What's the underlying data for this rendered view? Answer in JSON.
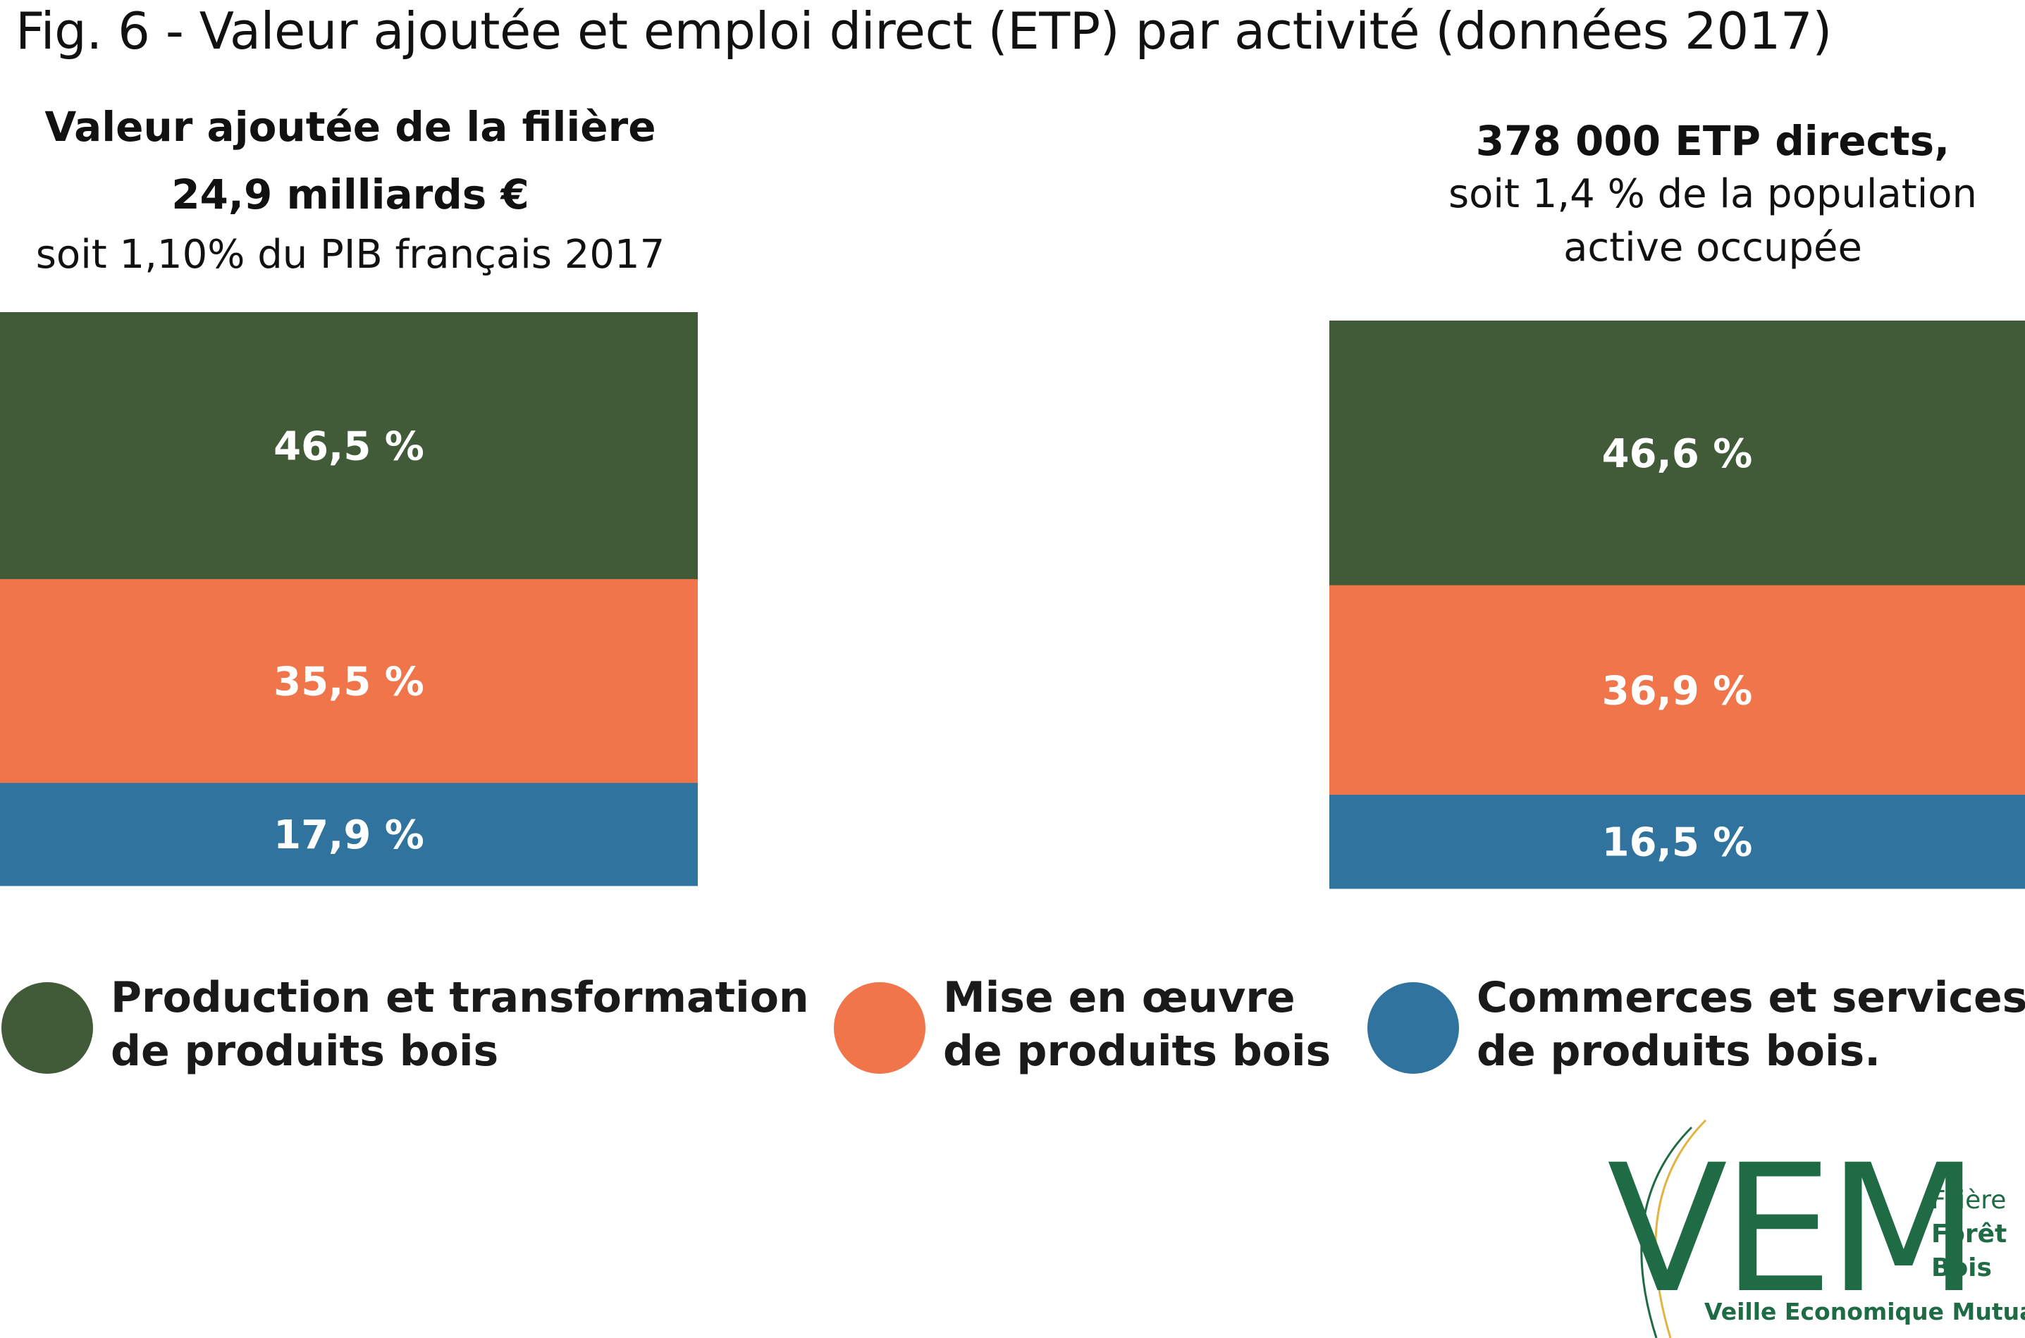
{
  "title": "Fig. 6 - Valeur ajoutée et emploi direct (ETP) par activité (données 2017)",
  "left_header": {
    "line1": "Valeur ajoutée de la filière",
    "line2": "24,9 milliards €",
    "line3": "soit 1,10% du PIB français 2017"
  },
  "right_header": {
    "line1": "378 000 ETP directs,",
    "line2": "soit 1,4 % de la population",
    "line3": "active occupée"
  },
  "colors": {
    "green": "#415a37",
    "orange": "#f0754a",
    "blue": "#2f739e"
  },
  "chart_data": {
    "type": "bar",
    "stacked": true,
    "categories": [
      "Valeur ajoutée",
      "Emploi direct (ETP)"
    ],
    "series": [
      {
        "name": "Production et transformation de produits bois",
        "color": "#415a37",
        "values": [
          46.5,
          46.6
        ],
        "labels": [
          "46,5 %",
          "46,6 %"
        ]
      },
      {
        "name": "Mise en œuvre de produits bois",
        "color": "#f0754a",
        "values": [
          35.5,
          36.9
        ],
        "labels": [
          "35,5 %",
          "36,9 %"
        ]
      },
      {
        "name": "Commerces et services de produits bois.",
        "color": "#2f739e",
        "values": [
          17.9,
          16.5
        ],
        "labels": [
          "17,9 %",
          "16,5 %"
        ]
      }
    ],
    "legend_position": "bottom",
    "grid": false
  },
  "legend": [
    {
      "line1": "Production et transformation",
      "line2": "de produits bois",
      "icon": "green-dot"
    },
    {
      "line1": "Mise en œuvre",
      "line2": "de produits bois",
      "icon": "orange-dot"
    },
    {
      "line1": "Commerces et services",
      "line2": "de produits bois.",
      "icon": "blue-dot"
    }
  ],
  "logo": {
    "letters": "VEM",
    "side_line1": "Filière",
    "side_line2": "Forêt",
    "side_line3": "Bois",
    "tagline": "Veille Economique Mutualisée"
  }
}
